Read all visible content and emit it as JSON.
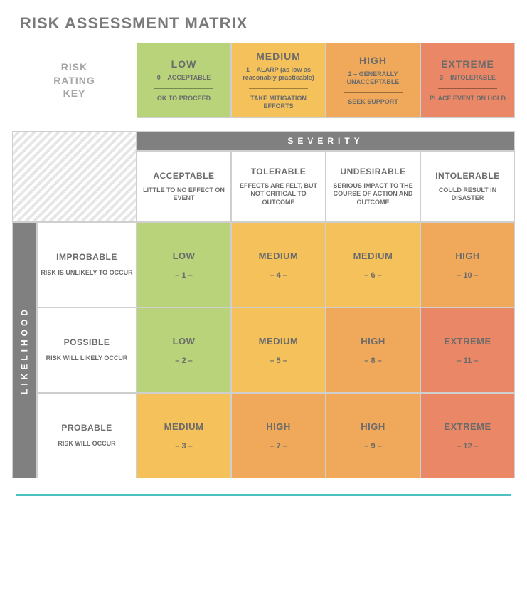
{
  "title": "RISK ASSESSMENT MATRIX",
  "colors": {
    "low": "#b8d37a",
    "medium": "#f4c15b",
    "high": "#f0a95b",
    "extreme": "#e98766",
    "grey_bar": "#808080",
    "text": "#6b6b6b",
    "label_grey": "#a6a6a6",
    "footer": "#4dc1c1"
  },
  "key": {
    "label_line1": "RISK",
    "label_line2": "RATING",
    "label_line3": "KEY",
    "items": [
      {
        "head": "LOW",
        "sub": "0 – ACCEPTABLE",
        "action": "OK TO PROCEED",
        "color_key": "low"
      },
      {
        "head": "MEDIUM",
        "sub": "1 – ALARP (as low as reasonably practicable)",
        "action": "TAKE MITIGATION EFFORTS",
        "color_key": "medium"
      },
      {
        "head": "HIGH",
        "sub": "2 – GENERALLY UNACCEPTABLE",
        "action": "SEEK SUPPORT",
        "color_key": "high"
      },
      {
        "head": "EXTREME",
        "sub": "3 – INTOLERABLE",
        "action": "PLACE EVENT ON HOLD",
        "color_key": "extreme"
      }
    ]
  },
  "matrix": {
    "severity_label": "SEVERITY",
    "likelihood_label": "LIKELIHOOD",
    "severity_cols": [
      {
        "head": "ACCEPTABLE",
        "sub": "LITTLE TO NO EFFECT ON EVENT"
      },
      {
        "head": "TOLERABLE",
        "sub": "EFFECTS ARE FELT, BUT NOT CRITICAL TO OUTCOME"
      },
      {
        "head": "UNDESIRABLE",
        "sub": "SERIOUS IMPACT TO THE COURSE OF ACTION AND OUTCOME"
      },
      {
        "head": "INTOLERABLE",
        "sub": "COULD RESULT IN DISASTER"
      }
    ],
    "likelihood_rows": [
      {
        "head": "IMPROBABLE",
        "sub": "RISK IS UNLIKELY TO OCCUR"
      },
      {
        "head": "POSSIBLE",
        "sub": "RISK WILL LIKELY OCCUR"
      },
      {
        "head": "PROBABLE",
        "sub": "RISK WILL OCCUR"
      }
    ],
    "cells": [
      [
        {
          "label": "LOW",
          "num": "– 1 –",
          "color_key": "low"
        },
        {
          "label": "MEDIUM",
          "num": "– 4 –",
          "color_key": "medium"
        },
        {
          "label": "MEDIUM",
          "num": "– 6 –",
          "color_key": "medium"
        },
        {
          "label": "HIGH",
          "num": "– 10 –",
          "color_key": "high"
        }
      ],
      [
        {
          "label": "LOW",
          "num": "– 2 –",
          "color_key": "low"
        },
        {
          "label": "MEDIUM",
          "num": "– 5 –",
          "color_key": "medium"
        },
        {
          "label": "HIGH",
          "num": "– 8 –",
          "color_key": "high"
        },
        {
          "label": "EXTREME",
          "num": "– 11 –",
          "color_key": "extreme"
        }
      ],
      [
        {
          "label": "MEDIUM",
          "num": "– 3 –",
          "color_key": "medium"
        },
        {
          "label": "HIGH",
          "num": "– 7 –",
          "color_key": "high"
        },
        {
          "label": "HIGH",
          "num": "– 9 –",
          "color_key": "high"
        },
        {
          "label": "EXTREME",
          "num": "– 12 –",
          "color_key": "extreme"
        }
      ]
    ]
  }
}
